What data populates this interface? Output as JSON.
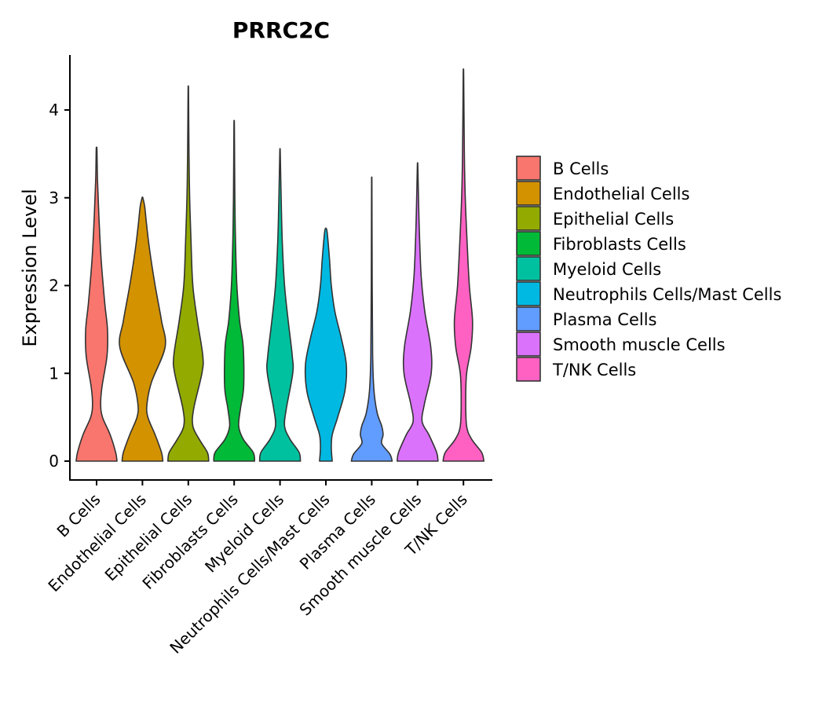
{
  "chart_data": {
    "type": "violin",
    "title": "PRRC2C",
    "xlabel": "",
    "ylabel": "Expression Level",
    "ylim": [
      -0.22,
      4.6
    ],
    "yticks": [
      0,
      1,
      2,
      3,
      4
    ],
    "grid": false,
    "legend_position": "right",
    "categories": [
      "B Cells",
      "Endothelial Cells",
      "Epithelial Cells",
      "Fibroblasts Cells",
      "Myeloid Cells",
      "Neutrophils Cells/Mast Cells",
      "Plasma Cells",
      "Smooth muscle Cells",
      "T/NK Cells"
    ],
    "series": [
      {
        "name": "B Cells",
        "color": "#F8766D",
        "max": 3.55,
        "profile": [
          [
            0,
            0.45
          ],
          [
            0.1,
            0.42
          ],
          [
            0.3,
            0.3
          ],
          [
            0.5,
            0.13
          ],
          [
            0.65,
            0.09
          ],
          [
            0.85,
            0.12
          ],
          [
            1.2,
            0.23
          ],
          [
            1.5,
            0.24
          ],
          [
            1.8,
            0.18
          ],
          [
            2.3,
            0.1
          ],
          [
            2.8,
            0.05
          ],
          [
            3.2,
            0.02
          ],
          [
            3.55,
            0.008
          ]
        ]
      },
      {
        "name": "Endothelial Cells",
        "color": "#D39200",
        "max": 3.0,
        "profile": [
          [
            0,
            0.45
          ],
          [
            0.1,
            0.42
          ],
          [
            0.3,
            0.28
          ],
          [
            0.5,
            0.12
          ],
          [
            0.65,
            0.1
          ],
          [
            0.9,
            0.2
          ],
          [
            1.3,
            0.5
          ],
          [
            1.6,
            0.42
          ],
          [
            2.0,
            0.28
          ],
          [
            2.4,
            0.16
          ],
          [
            2.7,
            0.09
          ],
          [
            2.9,
            0.05
          ],
          [
            3.0,
            0.008
          ]
        ]
      },
      {
        "name": "Epithelial Cells",
        "color": "#93AA00",
        "max": 4.22,
        "profile": [
          [
            0,
            0.45
          ],
          [
            0.1,
            0.42
          ],
          [
            0.25,
            0.24
          ],
          [
            0.4,
            0.1
          ],
          [
            0.6,
            0.12
          ],
          [
            1.0,
            0.3
          ],
          [
            1.2,
            0.32
          ],
          [
            1.6,
            0.2
          ],
          [
            2.0,
            0.1
          ],
          [
            2.5,
            0.06
          ],
          [
            3.0,
            0.03
          ],
          [
            3.5,
            0.015
          ],
          [
            4.22,
            0.005
          ]
        ]
      },
      {
        "name": "Fibroblasts Cells",
        "color": "#00BA38",
        "max": 3.82,
        "profile": [
          [
            0,
            0.45
          ],
          [
            0.1,
            0.42
          ],
          [
            0.25,
            0.2
          ],
          [
            0.4,
            0.1
          ],
          [
            0.6,
            0.14
          ],
          [
            0.85,
            0.21
          ],
          [
            1.3,
            0.2
          ],
          [
            1.6,
            0.12
          ],
          [
            2.0,
            0.06
          ],
          [
            2.5,
            0.03
          ],
          [
            3.0,
            0.015
          ],
          [
            3.82,
            0.005
          ]
        ]
      },
      {
        "name": "Myeloid Cells",
        "color": "#00C19F",
        "max": 3.52,
        "profile": [
          [
            0,
            0.45
          ],
          [
            0.1,
            0.42
          ],
          [
            0.25,
            0.22
          ],
          [
            0.4,
            0.1
          ],
          [
            0.6,
            0.14
          ],
          [
            1.0,
            0.28
          ],
          [
            1.2,
            0.27
          ],
          [
            1.6,
            0.18
          ],
          [
            2.0,
            0.1
          ],
          [
            2.5,
            0.05
          ],
          [
            3.0,
            0.025
          ],
          [
            3.52,
            0.005
          ]
        ]
      },
      {
        "name": "Neutrophils Cells/Mast Cells",
        "color": "#00B9E3",
        "max": 2.65,
        "profile": [
          [
            0,
            0.14
          ],
          [
            0.15,
            0.12
          ],
          [
            0.3,
            0.14
          ],
          [
            0.5,
            0.26
          ],
          [
            0.8,
            0.42
          ],
          [
            1.1,
            0.45
          ],
          [
            1.4,
            0.34
          ],
          [
            1.7,
            0.2
          ],
          [
            2.0,
            0.12
          ],
          [
            2.3,
            0.08
          ],
          [
            2.6,
            0.03
          ],
          [
            2.65,
            0.008
          ]
        ]
      },
      {
        "name": "Plasma Cells",
        "color": "#619CFF",
        "max": 3.15,
        "profile": [
          [
            0,
            0.45
          ],
          [
            0.08,
            0.4
          ],
          [
            0.2,
            0.22
          ],
          [
            0.3,
            0.25
          ],
          [
            0.4,
            0.22
          ],
          [
            0.55,
            0.12
          ],
          [
            0.8,
            0.05
          ],
          [
            1.2,
            0.02
          ],
          [
            2.0,
            0.01
          ],
          [
            3.15,
            0.004
          ]
        ]
      },
      {
        "name": "Smooth muscle Cells",
        "color": "#DB72FB",
        "max": 3.37,
        "profile": [
          [
            0,
            0.45
          ],
          [
            0.1,
            0.42
          ],
          [
            0.3,
            0.25
          ],
          [
            0.45,
            0.1
          ],
          [
            0.65,
            0.15
          ],
          [
            1.0,
            0.3
          ],
          [
            1.3,
            0.29
          ],
          [
            1.7,
            0.16
          ],
          [
            2.1,
            0.08
          ],
          [
            2.6,
            0.04
          ],
          [
            3.0,
            0.02
          ],
          [
            3.37,
            0.005
          ]
        ]
      },
      {
        "name": "T/NK Cells",
        "color": "#FF61C3",
        "max": 4.4,
        "profile": [
          [
            0,
            0.45
          ],
          [
            0.1,
            0.4
          ],
          [
            0.25,
            0.18
          ],
          [
            0.4,
            0.07
          ],
          [
            0.7,
            0.05
          ],
          [
            1.0,
            0.07
          ],
          [
            1.3,
            0.17
          ],
          [
            1.6,
            0.2
          ],
          [
            2.0,
            0.13
          ],
          [
            2.5,
            0.08
          ],
          [
            3.0,
            0.04
          ],
          [
            3.5,
            0.02
          ],
          [
            4.4,
            0.005
          ]
        ]
      }
    ]
  }
}
